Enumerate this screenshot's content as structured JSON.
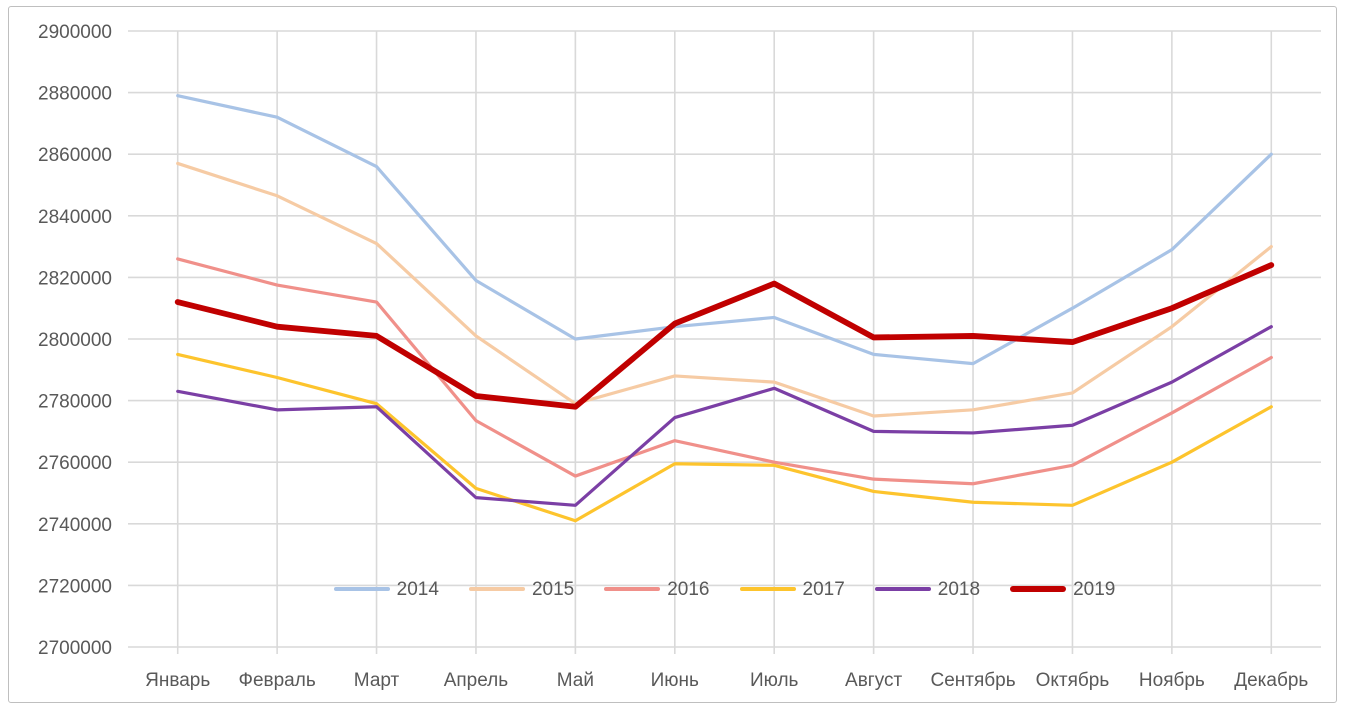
{
  "chart_data": {
    "type": "line",
    "title": "",
    "xlabel": "",
    "ylabel": "",
    "categories": [
      "Январь",
      "Февраль",
      "Март",
      "Апрель",
      "Май",
      "Июнь",
      "Июль",
      "Август",
      "Сентябрь",
      "Октябрь",
      "Ноябрь",
      "Декабрь"
    ],
    "series": [
      {
        "name": "2014",
        "color": "#A8C3E6",
        "stroke_width": 3.2,
        "values": [
          2879000,
          2872000,
          2856000,
          2819000,
          2800000,
          2804000,
          2807000,
          2795000,
          2792000,
          2810000,
          2829000,
          2860000
        ]
      },
      {
        "name": "2015",
        "color": "#F6CBA4",
        "stroke_width": 3.2,
        "values": [
          2857000,
          2846500,
          2831000,
          2801000,
          2779000,
          2788000,
          2786000,
          2775000,
          2777000,
          2782500,
          2804000,
          2830000
        ]
      },
      {
        "name": "2016",
        "color": "#F0908A",
        "stroke_width": 3.2,
        "values": [
          2826000,
          2817500,
          2812000,
          2773500,
          2755500,
          2767000,
          2760000,
          2754500,
          2753000,
          2759000,
          2776000,
          2794000
        ]
      },
      {
        "name": "2017",
        "color": "#FDC42D",
        "stroke_width": 3.2,
        "values": [
          2795000,
          2787500,
          2779000,
          2751500,
          2741000,
          2759500,
          2759000,
          2750500,
          2747000,
          2746000,
          2760000,
          2778000
        ]
      },
      {
        "name": "2018",
        "color": "#7B3FA5",
        "stroke_width": 3.2,
        "values": [
          2783000,
          2777000,
          2778000,
          2748500,
          2746000,
          2774500,
          2784000,
          2770000,
          2769500,
          2772000,
          2786000,
          2804000
        ]
      },
      {
        "name": "2019",
        "color": "#C00000",
        "stroke_width": 5.8,
        "values": [
          2812000,
          2804000,
          2801000,
          2781500,
          2778000,
          2805000,
          2818000,
          2800500,
          2801000,
          2799000,
          2810000,
          2824000
        ]
      }
    ],
    "ylim": [
      2700000,
      2900000
    ],
    "ytick_step": 20000,
    "ytick_labels": [
      "2900000",
      "2880000",
      "2860000",
      "2840000",
      "2820000",
      "2800000",
      "2780000",
      "2760000",
      "2740000",
      "2720000",
      "2700000"
    ],
    "grid": true,
    "legend": {
      "position": "bottom-center-inside",
      "entries": [
        "2014",
        "2015",
        "2016",
        "2017",
        "2018",
        "2019"
      ]
    },
    "axis_text_color": "#595959",
    "gridline_color": "#D9D9D9",
    "frame_border_color": "#BFBFBF",
    "background_color": "#FFFFFF"
  }
}
